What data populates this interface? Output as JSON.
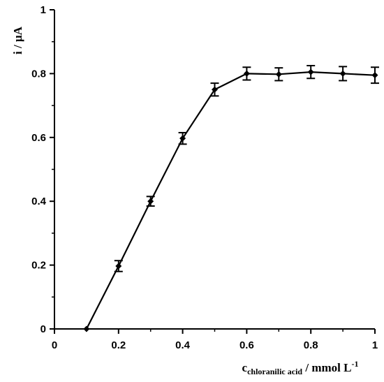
{
  "chart_data": {
    "type": "line",
    "title": "",
    "xlabel": {
      "main": "c",
      "subscript": "chloranilic acid",
      "rest": " / mmol L",
      "superscript": "-1"
    },
    "ylabel": "i / μA",
    "xlim": [
      0,
      1
    ],
    "ylim": [
      0,
      1
    ],
    "xticks": [
      "0",
      "0.2",
      "0.4",
      "0.6",
      "0.8",
      "1"
    ],
    "yticks": [
      "0",
      "0.2",
      "0.4",
      "0.6",
      "0.8",
      "1"
    ],
    "grid": false,
    "legend": "none",
    "series": [
      {
        "color": "#000000",
        "marker": "diamond",
        "x": [
          0.1,
          0.2,
          0.3,
          0.4,
          0.5,
          0.6,
          0.7,
          0.8,
          0.9,
          1.0
        ],
        "y": [
          0.0,
          0.197,
          0.4,
          0.597,
          0.75,
          0.8,
          0.798,
          0.805,
          0.8,
          0.795
        ],
        "error": [
          0,
          0.017,
          0.015,
          0.018,
          0.02,
          0.02,
          0.02,
          0.02,
          0.022,
          0.025
        ]
      }
    ]
  }
}
